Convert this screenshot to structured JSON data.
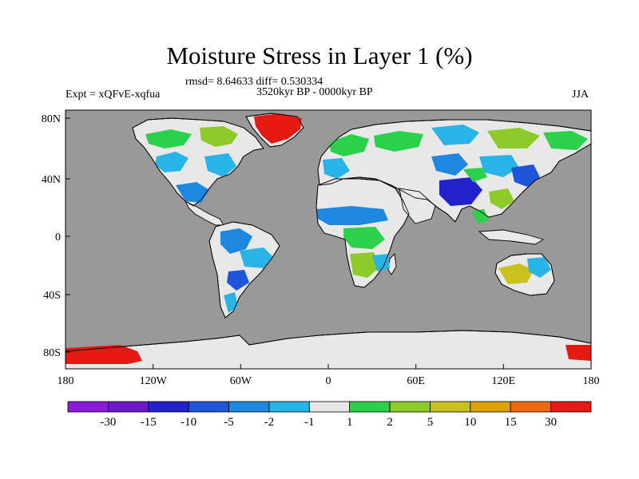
{
  "title": "Moisture Stress in Layer 1 (%)",
  "stats": "rmsd= 8.64633 diff= 0.530334",
  "period": "3520kyr BP - 0000kyr BP",
  "experiment": "Expt = xQFvE-xqfua",
  "season": "JJA",
  "colors": {
    "ocean": "#999999",
    "land_neutral": "#e8e8e8",
    "coast": "#000000"
  },
  "map": {
    "lat_ticks": [
      "80N",
      "40N",
      "0",
      "40S",
      "80S"
    ],
    "lon_ticks": [
      "180",
      "120W",
      "60W",
      "0",
      "60E",
      "120E",
      "180"
    ]
  },
  "colorbar": {
    "colors": [
      "#8a1bd9",
      "#6a18c8",
      "#2222cc",
      "#1f55d8",
      "#1e88e0",
      "#28b4e6",
      "#e6e6e6",
      "#2bd14a",
      "#8ecb2a",
      "#c9c21e",
      "#e0a000",
      "#ee6a10",
      "#e61a12"
    ],
    "labels": [
      "-30",
      "-15",
      "-10",
      "-5",
      "-2",
      "-1",
      "1",
      "2",
      "5",
      "10",
      "15",
      "30"
    ]
  }
}
